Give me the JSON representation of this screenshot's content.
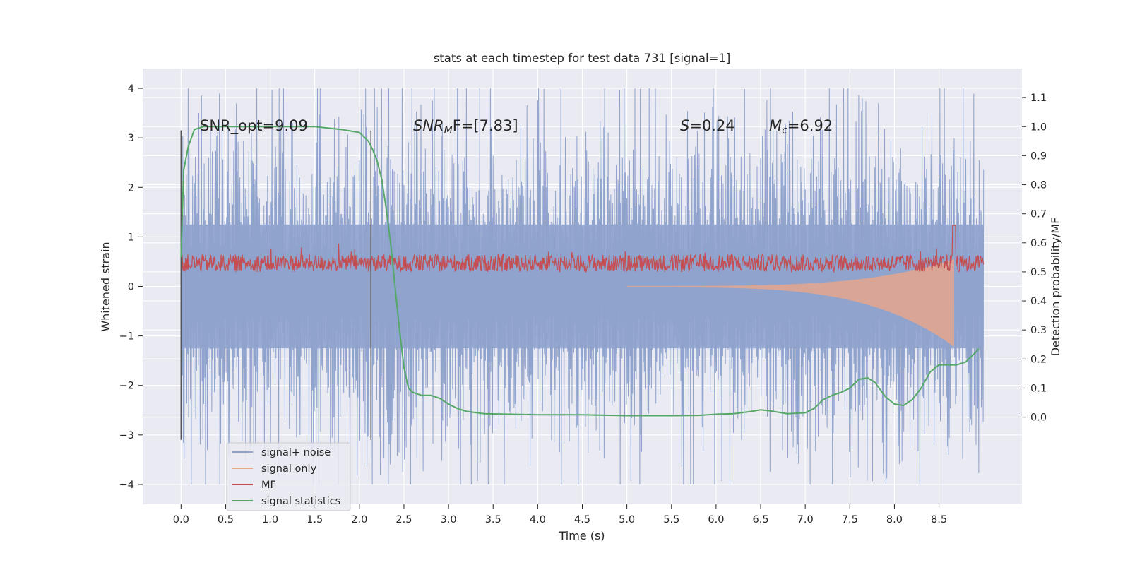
{
  "chart_data": {
    "type": "line",
    "title": "stats at each timestep for test data 731 [signal=1]",
    "xlabel": "Time (s)",
    "ylabel": "Whitened strain",
    "ylabel_right": "Detection probability/MF",
    "xlim": [
      -0.43,
      9.43
    ],
    "ylim": [
      -4.4,
      4.4
    ],
    "ylim_right": [
      -0.3,
      1.2
    ],
    "x_ticks": [
      "0.0",
      "0.5",
      "1.0",
      "1.5",
      "2.0",
      "2.5",
      "3.0",
      "3.5",
      "4.0",
      "4.5",
      "5.0",
      "5.5",
      "6.0",
      "6.5",
      "7.0",
      "7.5",
      "8.0",
      "8.5"
    ],
    "y_ticks": [
      "4",
      "3",
      "2",
      "1",
      "0",
      "−1",
      "−2",
      "−3",
      "−4"
    ],
    "y_ticks_right": [
      "1.1",
      "1.0",
      "0.9",
      "0.8",
      "0.7",
      "0.6",
      "0.5",
      "0.4",
      "0.3",
      "0.2",
      "0.1",
      "0.0"
    ],
    "grid": true,
    "legend_location": "lower left",
    "annotations": {
      "snr_opt": "SNR_opt=9.09",
      "snr_mf_label": "SNR",
      "snr_mf_sub": "M",
      "snr_mf_value": "F=[7.83]",
      "s_label": "S",
      "s_value": "=0.24",
      "mc_label": "M",
      "mc_sub": "c",
      "mc_value": "=6.92"
    },
    "vertical_markers": [
      0.0,
      2.13
    ],
    "series": [
      {
        "name": "signal+ noise",
        "color": "#8fa3cd",
        "axis": "left",
        "noise_envelope_typical": 2.0,
        "noise_envelope_max": 4.0,
        "x_range": [
          0.0,
          9.0
        ]
      },
      {
        "name": "signal only",
        "color": "#e5a68c",
        "axis": "left",
        "chirp_end": 8.67,
        "chirp_peak_amplitude": 1.2
      },
      {
        "name": "MF",
        "color": "#c44e52",
        "axis": "right",
        "baseline": 0.53,
        "peak_x": 8.67,
        "peak_value": 0.66
      },
      {
        "name": "signal statistics",
        "color": "#55a868",
        "axis": "right",
        "x": [
          0.0,
          0.03,
          0.08,
          0.15,
          0.25,
          0.5,
          1.0,
          1.5,
          1.8,
          2.0,
          2.1,
          2.15,
          2.2,
          2.25,
          2.3,
          2.35,
          2.4,
          2.45,
          2.5,
          2.55,
          2.6,
          2.7,
          2.8,
          2.9,
          3.0,
          3.1,
          3.2,
          3.4,
          3.7,
          4.0,
          4.5,
          5.0,
          5.5,
          5.8,
          6.0,
          6.2,
          6.4,
          6.5,
          6.6,
          6.8,
          7.0,
          7.1,
          7.2,
          7.3,
          7.4,
          7.5,
          7.6,
          7.7,
          7.78,
          7.9,
          8.0,
          8.1,
          8.2,
          8.3,
          8.4,
          8.5,
          8.6,
          8.7,
          8.8,
          8.9,
          8.95
        ],
        "y": [
          0.55,
          0.85,
          0.93,
          0.99,
          1.0,
          1.0,
          1.0,
          1.0,
          0.99,
          0.98,
          0.95,
          0.92,
          0.88,
          0.82,
          0.72,
          0.6,
          0.45,
          0.3,
          0.17,
          0.1,
          0.085,
          0.075,
          0.075,
          0.065,
          0.045,
          0.03,
          0.02,
          0.012,
          0.01,
          0.008,
          0.008,
          0.005,
          0.005,
          0.006,
          0.01,
          0.012,
          0.02,
          0.025,
          0.022,
          0.012,
          0.015,
          0.03,
          0.06,
          0.075,
          0.085,
          0.1,
          0.13,
          0.135,
          0.12,
          0.07,
          0.045,
          0.04,
          0.06,
          0.1,
          0.155,
          0.18,
          0.18,
          0.18,
          0.19,
          0.22,
          0.235
        ]
      }
    ]
  }
}
